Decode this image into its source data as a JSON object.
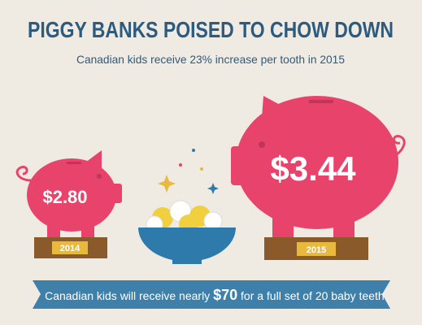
{
  "header": {
    "title": "PIGGY BANKS POISED TO CHOW DOWN",
    "subtitle": "Canadian kids receive 23% increase per tooth in 2015"
  },
  "piggies": [
    {
      "value": "$2.80",
      "year": "2014"
    },
    {
      "value": "$3.44",
      "year": "2015"
    }
  ],
  "banner": {
    "before": "Canadian kids will receive nearly ",
    "highlight": "$70",
    "after": " for a full set of 20 baby teeth"
  }
}
